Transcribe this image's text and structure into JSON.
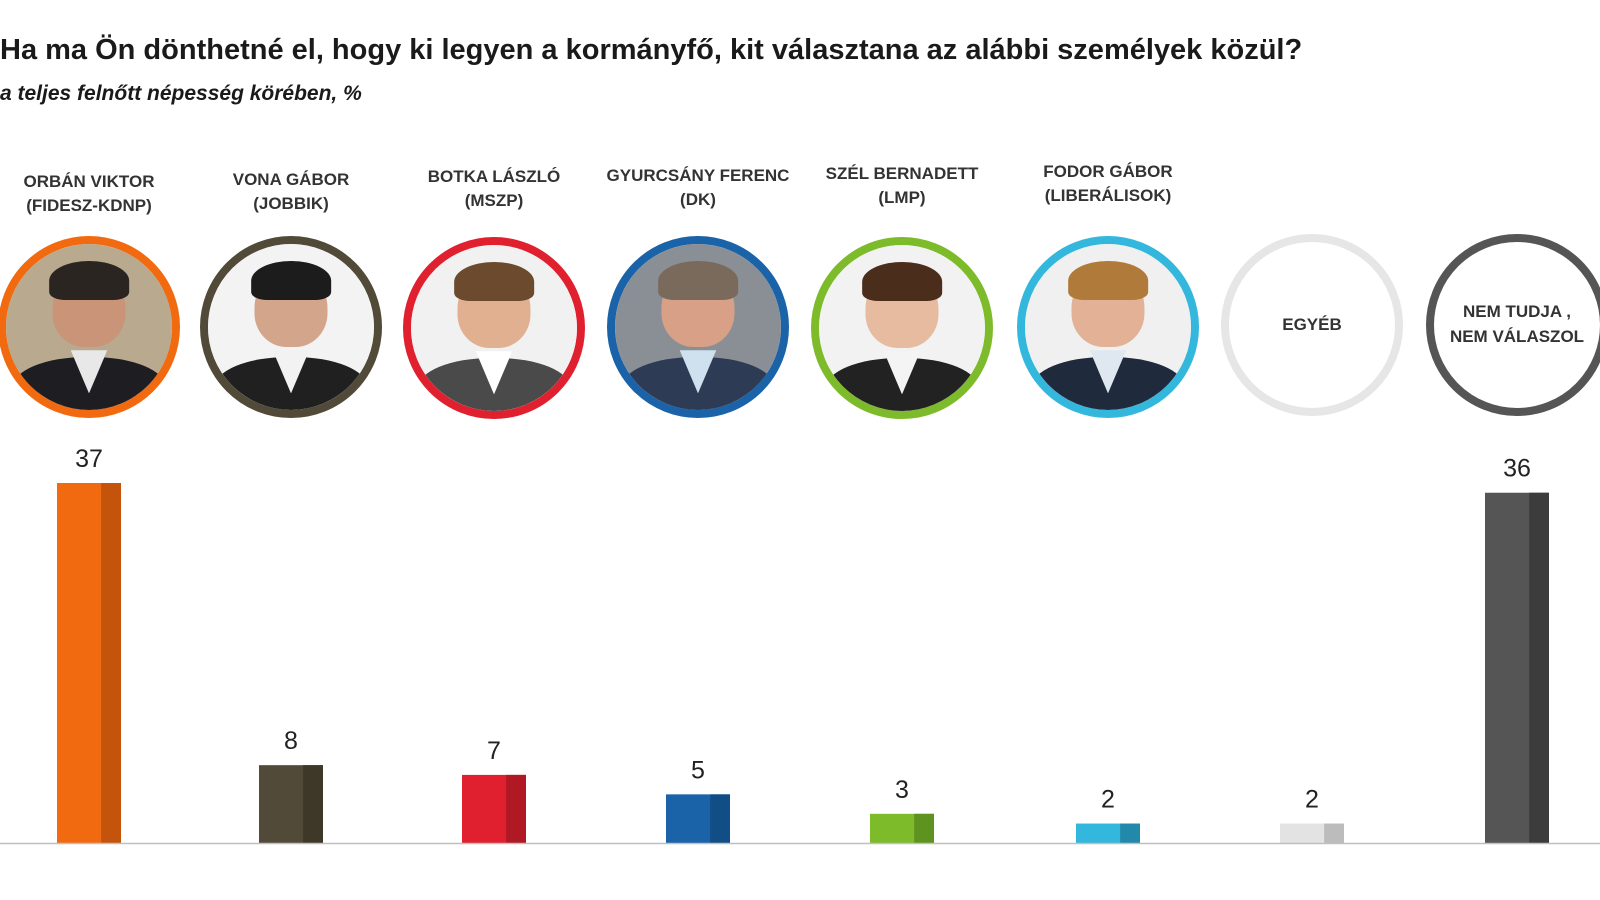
{
  "title": "Ha ma Ön dönthetné el, hogy ki legyen a kormányfő, kit választana az alábbi személyek közül?",
  "subtitle": "a teljes felnőtt népesség körében, %",
  "candidates": [
    {
      "name": "ORBÁN VIKTOR",
      "party": "(FIDESZ-KDNP)",
      "color": "#f26a10",
      "shade": "#c4540b",
      "value": 37
    },
    {
      "name": "VONA GÁBOR",
      "party": "(JOBBIK)",
      "color": "#514a38",
      "shade": "#3e3829",
      "value": 8
    },
    {
      "name": "BOTKA LÁSZLÓ",
      "party": "(MSZP)",
      "color": "#e0202f",
      "shade": "#b01824",
      "value": 7
    },
    {
      "name": "GYURCSÁNY FERENC",
      "party": "(DK)",
      "color": "#1a63a8",
      "shade": "#124e86",
      "value": 5
    },
    {
      "name": "SZÉL BERNADETT",
      "party": "(LMP)",
      "color": "#7dbb2a",
      "shade": "#5e9320",
      "value": 3
    },
    {
      "name": "FODOR GÁBOR",
      "party": "(LIBERÁLISOK)",
      "color": "#33b7dd",
      "shade": "#2289aa",
      "value": 2
    },
    {
      "name": "EGYÉB",
      "party": "",
      "color": "#e3e3e3",
      "shade": "#bcbcbc",
      "value": 2
    },
    {
      "name": "NEM TUDJA ,",
      "party": "NEM VÁLASZOL",
      "color": "#555555",
      "shade": "#3c3c3c",
      "value": 36
    }
  ],
  "chart_data": {
    "type": "bar",
    "title": "Ha ma Ön dönthetné el, hogy ki legyen a kormányfő, kit választana az alábbi személyek közül?",
    "subtitle": "a teljes felnőtt népesség körében, %",
    "categories": [
      "ORBÁN VIKTOR (FIDESZ-KDNP)",
      "VONA GÁBOR (JOBBIK)",
      "BOTKA LÁSZLÓ (MSZP)",
      "GYURCSÁNY FERENC (DK)",
      "SZÉL BERNADETT (LMP)",
      "FODOR GÁBOR (LIBERÁLISOK)",
      "EGYÉB",
      "NEM TUDJA , NEM VÁLASZOL"
    ],
    "values": [
      37,
      8,
      7,
      5,
      3,
      2,
      2,
      36
    ],
    "xlabel": "",
    "ylabel": "%",
    "ylim": [
      0,
      37
    ],
    "grid": false,
    "legend": "none"
  }
}
